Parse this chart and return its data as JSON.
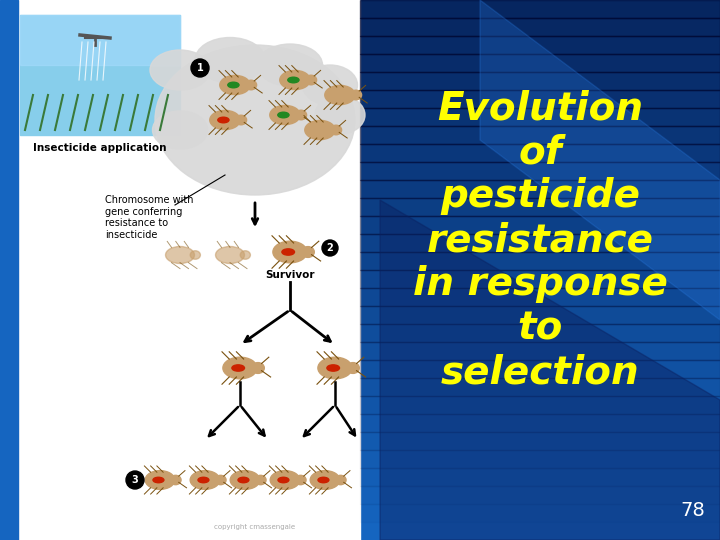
{
  "left_bg": "#ffffff",
  "right_bg": "#1565C0",
  "right_bg_dark": "#001060",
  "title_lines": [
    "Evolution",
    "of",
    "pesticide",
    "resistance",
    "in response",
    "to",
    "selection"
  ],
  "title_color": "#ffff00",
  "title_fontsize": 28,
  "page_number": "78",
  "page_number_color": "#ffffff",
  "page_number_fontsize": 14,
  "left_label_insecticide": "Insecticide application",
  "left_label_chromosome": "Chromosome with\ngene conferring\nresistance to\ninsecticide",
  "left_label_survivor": "Survivor"
}
